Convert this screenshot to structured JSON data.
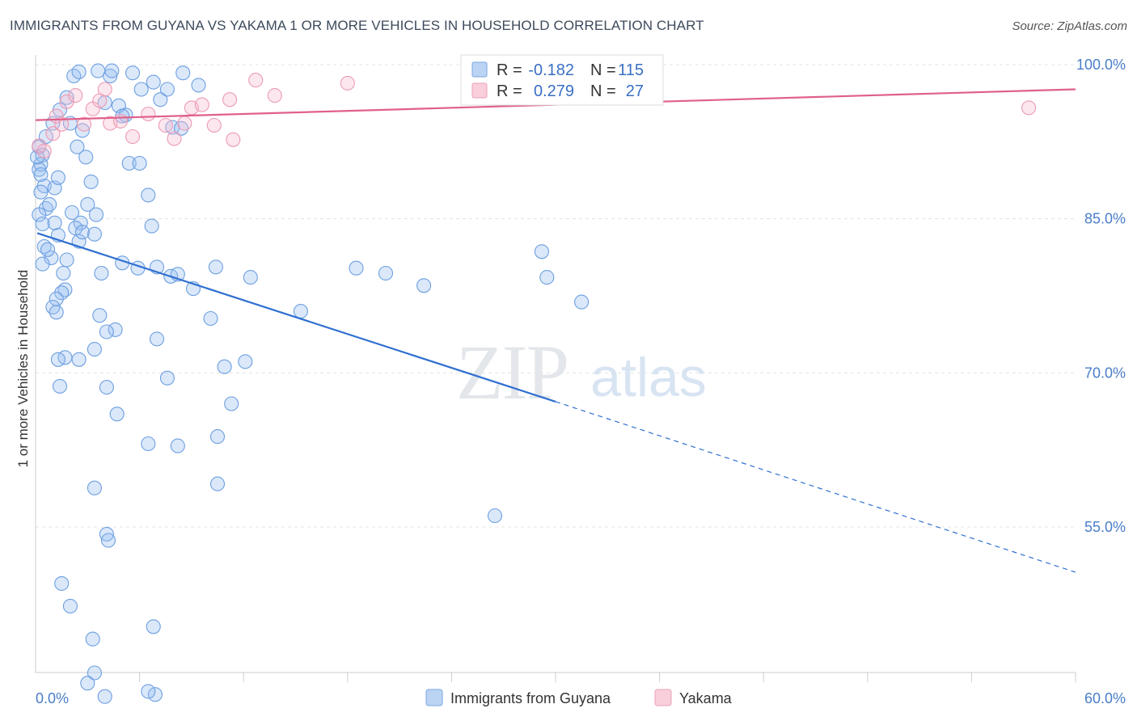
{
  "title": "IMMIGRANTS FROM GUYANA VS YAKAMA 1 OR MORE VEHICLES IN HOUSEHOLD CORRELATION CHART",
  "source": "Source: ZipAtlas.com",
  "watermark": {
    "zip": "ZIP",
    "atlas": "atlas"
  },
  "legend": {
    "r_label": "R =",
    "n_label": "N =",
    "series1": {
      "r": "-0.182",
      "n": "115"
    },
    "series2": {
      "r": "0.279",
      "n": "27"
    }
  },
  "chart_data": {
    "type": "scatter",
    "title": "IMMIGRANTS FROM GUYANA VS YAKAMA 1 OR MORE VEHICLES IN HOUSEHOLD CORRELATION CHART",
    "xlabel": "",
    "ylabel": "1 or more Vehicles in Household",
    "xlim": [
      0,
      60
    ],
    "ylim": [
      40,
      100
    ],
    "x_tick_labels": [
      "0.0%",
      "60.0%"
    ],
    "y_ticks": [
      55,
      70,
      85,
      100
    ],
    "y_tick_labels": [
      "55.0%",
      "70.0%",
      "85.0%",
      "100.0%"
    ],
    "grid": true,
    "legend_position": "top-center",
    "colors": {
      "guyana": "#8fb8ec",
      "guyana_line": "#2f6fd0",
      "yakama": "#f4b6c8",
      "yakama_line": "#e0608a"
    },
    "series": [
      {
        "name": "Immigrants from Guyana",
        "r": -0.182,
        "n": 115,
        "trend": {
          "x0": 0.1,
          "y0": 83.6,
          "x1": 30,
          "y1": 67.2,
          "x_dash_end": 60,
          "y_dash_end": 50.6
        },
        "points": [
          [
            0.2,
            92.0
          ],
          [
            0.4,
            91.2
          ],
          [
            0.3,
            90.3
          ],
          [
            0.2,
            89.8
          ],
          [
            0.5,
            88.2
          ],
          [
            0.3,
            87.6
          ],
          [
            0.6,
            86.0
          ],
          [
            0.2,
            85.4
          ],
          [
            0.8,
            86.4
          ],
          [
            0.4,
            84.5
          ],
          [
            0.5,
            82.3
          ],
          [
            0.9,
            81.2
          ],
          [
            0.4,
            80.6
          ],
          [
            0.7,
            82.0
          ],
          [
            0.1,
            91.0
          ],
          [
            0.3,
            89.3
          ],
          [
            1.1,
            88.0
          ],
          [
            1.3,
            89.0
          ],
          [
            0.6,
            93.0
          ],
          [
            1.0,
            94.3
          ],
          [
            1.4,
            95.6
          ],
          [
            1.8,
            96.8
          ],
          [
            2.0,
            94.3
          ],
          [
            2.4,
            92.0
          ],
          [
            2.7,
            93.6
          ],
          [
            2.9,
            91.0
          ],
          [
            3.2,
            88.6
          ],
          [
            3.0,
            86.4
          ],
          [
            2.6,
            84.6
          ],
          [
            3.4,
            83.5
          ],
          [
            4.0,
            96.3
          ],
          [
            4.3,
            98.9
          ],
          [
            4.8,
            96.0
          ],
          [
            5.2,
            95.1
          ],
          [
            5.6,
            99.2
          ],
          [
            6.1,
            97.6
          ],
          [
            6.8,
            98.3
          ],
          [
            7.2,
            96.6
          ],
          [
            2.2,
            98.9
          ],
          [
            2.5,
            99.3
          ],
          [
            3.6,
            99.4
          ],
          [
            4.4,
            99.4
          ],
          [
            5.0,
            95.0
          ],
          [
            5.4,
            90.4
          ],
          [
            6.0,
            90.4
          ],
          [
            6.5,
            87.3
          ],
          [
            6.7,
            84.3
          ],
          [
            7.6,
            97.6
          ],
          [
            8.5,
            99.2
          ],
          [
            7.9,
            93.9
          ],
          [
            9.4,
            98.0
          ],
          [
            8.4,
            93.8
          ],
          [
            1.1,
            84.6
          ],
          [
            1.3,
            83.4
          ],
          [
            2.1,
            85.6
          ],
          [
            2.3,
            84.1
          ],
          [
            2.5,
            82.8
          ],
          [
            1.8,
            81.0
          ],
          [
            1.6,
            79.7
          ],
          [
            1.7,
            78.1
          ],
          [
            1.5,
            77.8
          ],
          [
            1.2,
            77.2
          ],
          [
            1.0,
            76.4
          ],
          [
            1.2,
            75.9
          ],
          [
            3.8,
            79.7
          ],
          [
            5.0,
            80.7
          ],
          [
            5.9,
            80.2
          ],
          [
            7.0,
            80.3
          ],
          [
            7.8,
            79.4
          ],
          [
            8.2,
            79.6
          ],
          [
            9.1,
            78.2
          ],
          [
            10.4,
            80.3
          ],
          [
            10.1,
            75.3
          ],
          [
            12.4,
            79.3
          ],
          [
            12.1,
            71.1
          ],
          [
            10.9,
            70.6
          ],
          [
            11.3,
            67.0
          ],
          [
            10.5,
            63.8
          ],
          [
            7.6,
            69.5
          ],
          [
            7.0,
            73.3
          ],
          [
            4.6,
            74.2
          ],
          [
            3.7,
            75.6
          ],
          [
            4.1,
            74.0
          ],
          [
            3.4,
            72.3
          ],
          [
            2.5,
            71.3
          ],
          [
            1.7,
            71.5
          ],
          [
            1.3,
            71.3
          ],
          [
            1.4,
            68.7
          ],
          [
            4.1,
            68.6
          ],
          [
            4.7,
            66.0
          ],
          [
            6.5,
            63.1
          ],
          [
            8.2,
            62.9
          ],
          [
            10.5,
            59.2
          ],
          [
            3.4,
            58.8
          ],
          [
            4.1,
            54.3
          ],
          [
            4.2,
            53.7
          ],
          [
            1.5,
            49.5
          ],
          [
            2.0,
            47.3
          ],
          [
            6.8,
            45.3
          ],
          [
            3.3,
            44.1
          ],
          [
            3.4,
            40.8
          ],
          [
            3.0,
            39.8
          ],
          [
            4.0,
            38.5
          ],
          [
            6.9,
            38.7
          ],
          [
            6.5,
            39.0
          ],
          [
            18.5,
            80.2
          ],
          [
            20.2,
            79.7
          ],
          [
            15.3,
            76.0
          ],
          [
            22.4,
            78.5
          ],
          [
            29.2,
            81.8
          ],
          [
            29.5,
            79.3
          ],
          [
            31.5,
            76.9
          ],
          [
            26.5,
            56.1
          ],
          [
            2.7,
            83.7
          ],
          [
            3.5,
            85.4
          ]
        ]
      },
      {
        "name": "Yakama",
        "r": 0.279,
        "n": 27,
        "trend": {
          "x0": 0.0,
          "y0": 94.6,
          "x1": 60,
          "y1": 97.6
        },
        "points": [
          [
            0.2,
            92.1
          ],
          [
            0.5,
            91.6
          ],
          [
            1.0,
            93.3
          ],
          [
            1.5,
            94.2
          ],
          [
            1.2,
            95.0
          ],
          [
            1.8,
            96.4
          ],
          [
            2.3,
            97.0
          ],
          [
            2.8,
            94.2
          ],
          [
            3.3,
            95.7
          ],
          [
            3.7,
            96.5
          ],
          [
            4.0,
            97.6
          ],
          [
            4.3,
            94.3
          ],
          [
            4.9,
            94.5
          ],
          [
            5.6,
            93.0
          ],
          [
            6.5,
            95.2
          ],
          [
            7.5,
            94.1
          ],
          [
            8.0,
            92.8
          ],
          [
            8.6,
            94.3
          ],
          [
            9.0,
            95.8
          ],
          [
            9.6,
            96.1
          ],
          [
            10.3,
            94.1
          ],
          [
            11.4,
            92.7
          ],
          [
            11.2,
            96.6
          ],
          [
            12.7,
            98.5
          ],
          [
            13.8,
            97.0
          ],
          [
            18.0,
            98.2
          ],
          [
            57.3,
            95.8
          ]
        ]
      }
    ]
  },
  "bottom_legend": {
    "series1": "Immigrants from Guyana",
    "series2": "Yakama"
  }
}
